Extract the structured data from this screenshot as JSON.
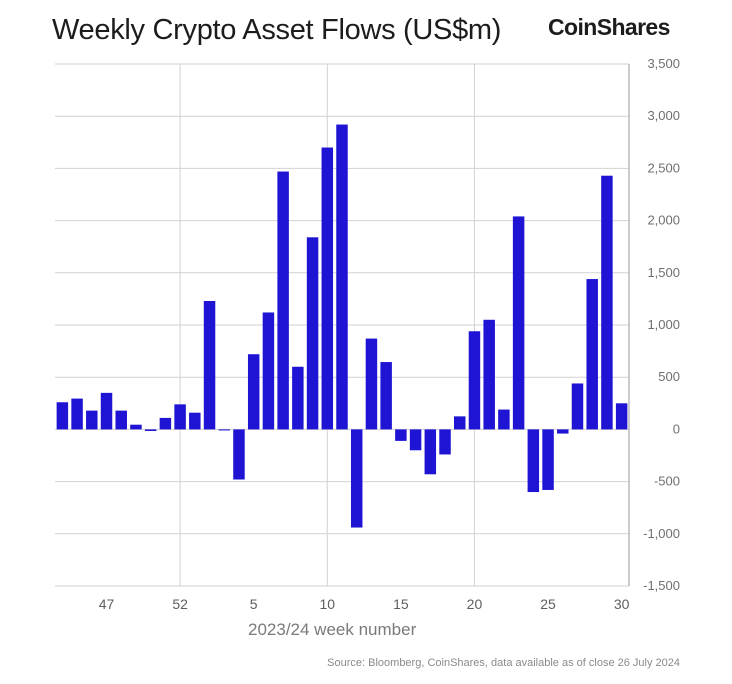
{
  "header": {
    "title": "Weekly Crypto Asset Flows (US$m)",
    "logo": "CoinShares"
  },
  "footer": {
    "source": "Source: Bloomberg, CoinShares, data available as of close 26 July 2024"
  },
  "colors": {
    "bar": "#1f14d4",
    "grid": "#d2d2d2",
    "axis": "#9a9a9a"
  },
  "chart_data": {
    "type": "bar",
    "xlabel": "2023/24 week number",
    "ylabel": "",
    "ylim": [
      -1500,
      3500
    ],
    "yticks": [
      3500,
      3000,
      2500,
      2000,
      1500,
      1000,
      500,
      0,
      -500,
      -1000,
      -1500
    ],
    "ytick_labels": [
      "3,500",
      "3,000",
      "2,500",
      "2,000",
      "1,500",
      "1,000",
      "500",
      "0",
      "-500",
      "-1,000",
      "-1,500"
    ],
    "xtick_labels": [
      "47",
      "52",
      "5",
      "10",
      "15",
      "20",
      "25",
      "30"
    ],
    "xtick_bar_index": [
      3,
      8,
      13,
      18,
      23,
      28,
      33,
      38
    ],
    "vgrid_bar_index": [
      8.5,
      18.5,
      28.5
    ],
    "grid": true,
    "categories": [
      "44",
      "45",
      "46",
      "47",
      "48",
      "49",
      "50",
      "51",
      "52",
      "1",
      "2",
      "3",
      "4",
      "5",
      "6",
      "7",
      "8",
      "9",
      "10",
      "11",
      "12",
      "13",
      "14",
      "15",
      "16",
      "17",
      "18",
      "19",
      "20",
      "21",
      "22",
      "23",
      "24",
      "25",
      "26",
      "27",
      "28",
      "29",
      "30"
    ],
    "values": [
      260,
      295,
      180,
      350,
      180,
      45,
      -15,
      110,
      240,
      160,
      1230,
      -10,
      -480,
      720,
      1120,
      2470,
      600,
      1840,
      2700,
      2920,
      -940,
      870,
      645,
      -110,
      -200,
      -430,
      -240,
      125,
      940,
      1050,
      190,
      2040,
      -600,
      -580,
      -40,
      440,
      1440,
      2430,
      250
    ]
  }
}
